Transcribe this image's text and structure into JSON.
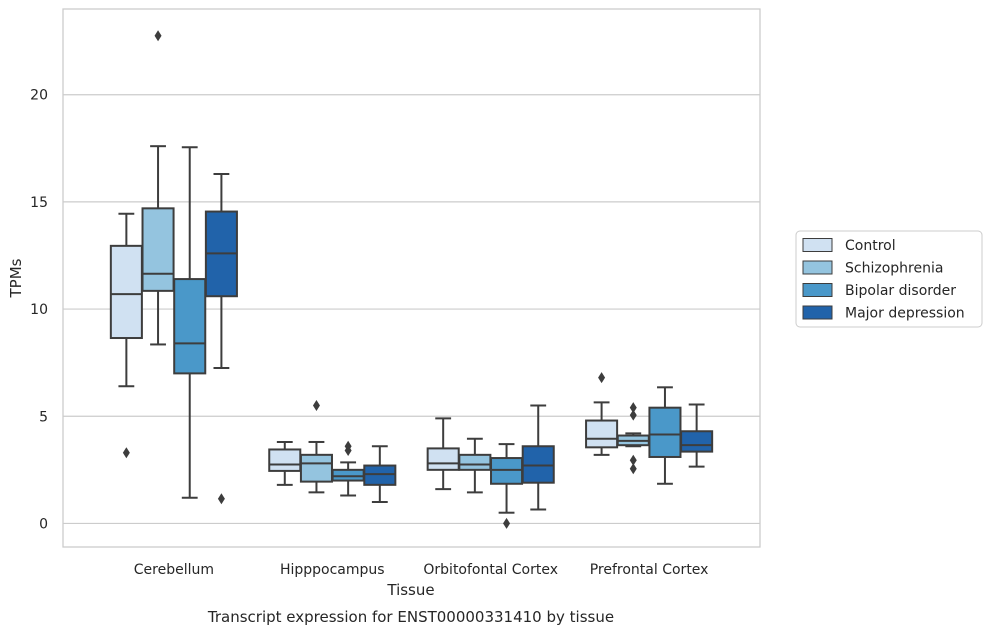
{
  "chart_data": {
    "type": "boxplot",
    "title": "Transcript expression for ENST00000331410 by tissue",
    "xlabel": "Tissue",
    "ylabel": "TPMs",
    "ylim": [
      -1.1,
      24
    ],
    "yticks": [
      0,
      5,
      10,
      15,
      20
    ],
    "grid": true,
    "legend_position": "right",
    "categories": [
      "Cerebellum",
      "Hipppocampus",
      "Orbitofontal Cortex",
      "Prefrontal Cortex"
    ],
    "series": [
      {
        "name": "Control",
        "color": "#d0e1f2",
        "boxes": [
          {
            "whislo": 6.4,
            "q1": 8.65,
            "med": 10.7,
            "q3": 12.95,
            "whishi": 14.45,
            "fliers": [
              3.3
            ]
          },
          {
            "whislo": 1.8,
            "q1": 2.45,
            "med": 2.75,
            "q3": 3.45,
            "whishi": 3.8,
            "fliers": []
          },
          {
            "whislo": 1.6,
            "q1": 2.5,
            "med": 2.8,
            "q3": 3.5,
            "whishi": 4.9,
            "fliers": []
          },
          {
            "whislo": 3.2,
            "q1": 3.55,
            "med": 3.95,
            "q3": 4.8,
            "whishi": 5.65,
            "fliers": [
              6.8
            ]
          }
        ]
      },
      {
        "name": "Schizophrenia",
        "color": "#94c4df",
        "boxes": [
          {
            "whislo": 8.35,
            "q1": 10.85,
            "med": 11.65,
            "q3": 14.7,
            "whishi": 17.6,
            "fliers": [
              22.75
            ]
          },
          {
            "whislo": 1.45,
            "q1": 1.95,
            "med": 2.8,
            "q3": 3.2,
            "whishi": 3.8,
            "fliers": [
              5.5
            ]
          },
          {
            "whislo": 1.45,
            "q1": 2.5,
            "med": 2.75,
            "q3": 3.2,
            "whishi": 3.95,
            "fliers": []
          },
          {
            "whislo": 3.6,
            "q1": 3.65,
            "med": 3.85,
            "q3": 4.1,
            "whishi": 4.2,
            "fliers": [
              2.95,
              2.55,
              5.05,
              5.4
            ]
          }
        ]
      },
      {
        "name": "Bipolar disorder",
        "color": "#4a98c9",
        "boxes": [
          {
            "whislo": 1.2,
            "q1": 7.0,
            "med": 8.4,
            "q3": 11.4,
            "whishi": 17.55,
            "fliers": []
          },
          {
            "whislo": 1.3,
            "q1": 2.0,
            "med": 2.2,
            "q3": 2.5,
            "whishi": 2.85,
            "fliers": [
              3.4,
              3.6
            ]
          },
          {
            "whislo": 0.5,
            "q1": 1.85,
            "med": 2.5,
            "q3": 3.05,
            "whishi": 3.7,
            "fliers": [
              0.0
            ]
          },
          {
            "whislo": 1.85,
            "q1": 3.1,
            "med": 4.15,
            "q3": 5.4,
            "whishi": 6.35,
            "fliers": []
          }
        ]
      },
      {
        "name": "Major depression",
        "color": "#2163aa",
        "boxes": [
          {
            "whislo": 7.25,
            "q1": 10.6,
            "med": 12.6,
            "q3": 14.55,
            "whishi": 16.3,
            "fliers": [
              1.15
            ]
          },
          {
            "whislo": 1.0,
            "q1": 1.8,
            "med": 2.3,
            "q3": 2.7,
            "whishi": 3.6,
            "fliers": []
          },
          {
            "whislo": 0.65,
            "q1": 1.9,
            "med": 2.7,
            "q3": 3.6,
            "whishi": 5.5,
            "fliers": []
          },
          {
            "whislo": 2.65,
            "q1": 3.35,
            "med": 3.65,
            "q3": 4.3,
            "whishi": 5.55,
            "fliers": []
          }
        ]
      }
    ]
  }
}
